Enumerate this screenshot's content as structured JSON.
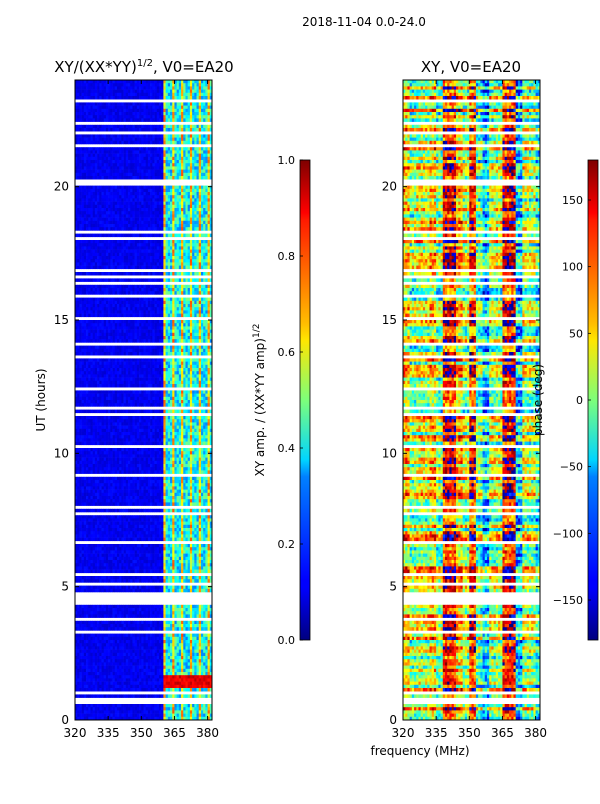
{
  "suptitle": "2018-11-04 0.0-24.0",
  "shared_xlabel": "frequency (MHz)",
  "chart_data": [
    {
      "type": "heatmap",
      "title_main": "XY/(XX*YY)",
      "title_exp": "1/2",
      "title_suffix": ", V0=EA20",
      "ylabel": "UT (hours)",
      "xlim": [
        320,
        382
      ],
      "ylim": [
        0,
        24
      ],
      "xticks": [
        320,
        335,
        350,
        365,
        380
      ],
      "yticks": [
        0,
        5,
        10,
        15,
        20
      ],
      "colorbar": {
        "label_main": "XY amp. / (XX*YY amp)",
        "label_exp": "1/2",
        "range": [
          0.0,
          1.0
        ],
        "ticks": [
          "0.0",
          "0.2",
          "0.4",
          "0.6",
          "0.8",
          "1.0"
        ],
        "tick_values": [
          0.0,
          0.2,
          0.4,
          0.6,
          0.8,
          1.0
        ]
      }
    },
    {
      "type": "heatmap",
      "title": "XY, V0=EA20",
      "ylabel": "",
      "xlim": [
        320,
        382
      ],
      "ylim": [
        0,
        24
      ],
      "xticks": [
        320,
        335,
        350,
        365,
        380
      ],
      "yticks": [
        0,
        5,
        10,
        15,
        20
      ],
      "colorbar": {
        "label": "phase (deg)",
        "range": [
          -180,
          180
        ],
        "ticks": [
          "150",
          "100",
          "50",
          "0",
          "−50",
          "−100",
          "−150"
        ],
        "tick_values": [
          150,
          100,
          50,
          0,
          -50,
          -100,
          -150
        ]
      }
    }
  ]
}
